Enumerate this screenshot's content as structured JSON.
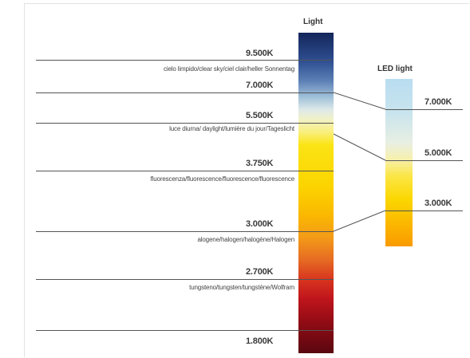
{
  "main_bar": {
    "title": "Light"
  },
  "led_bar": {
    "title": "LED light"
  },
  "levels": [
    {
      "kelvin": "9.500K",
      "label": "cielo limpido/clear sky/ciel clair/heller Sonnentag"
    },
    {
      "kelvin": "7.000K",
      "label": ""
    },
    {
      "kelvin": "5.500K",
      "label": "luce diurna/ daylight/lumière du jour/Tageslicht"
    },
    {
      "kelvin": "3.750K",
      "label": "fluorescenza/fluorescence/fluorescence/fluorescence"
    },
    {
      "kelvin": "3.000K",
      "label": "alogene/halogen/halogène/Halogen"
    },
    {
      "kelvin": "2.700K",
      "label": "tungsteno/tungsten/tungstène/Wolfram"
    },
    {
      "kelvin": "1.800K",
      "label": ""
    }
  ],
  "led_levels": [
    {
      "kelvin": "7.000K"
    },
    {
      "kelvin": "5.000K"
    },
    {
      "kelvin": "3.000K"
    }
  ],
  "colors": {
    "line": "#555555",
    "text": "#3a3a3a"
  }
}
